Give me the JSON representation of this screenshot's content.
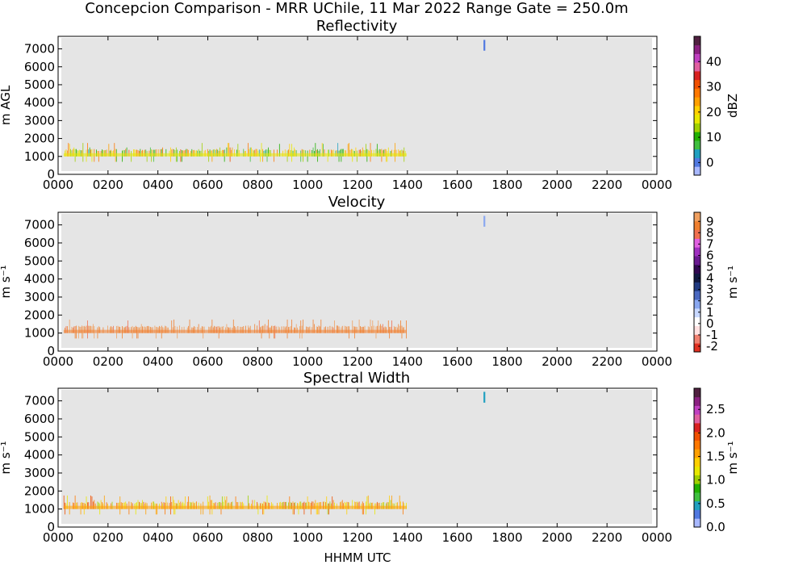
{
  "figure": {
    "title": "Concepcion Comparison - MRR UChile, 11 Mar 2022 Range Gate = 250.0m",
    "xlabel": "HHMM UTC"
  },
  "chart_data": [
    {
      "type": "heatmap",
      "title": "Reflectivity",
      "ylabel": "m AGL",
      "x_ticks": [
        "0000",
        "0200",
        "0400",
        "0600",
        "0800",
        "1000",
        "1200",
        "1400",
        "1600",
        "1800",
        "2000",
        "2200",
        "0000"
      ],
      "y_ticks": [
        0,
        1000,
        2000,
        3000,
        4000,
        5000,
        6000,
        7000
      ],
      "xlim_hours": [
        0,
        24
      ],
      "ylim": [
        0,
        7700
      ],
      "colorbar": {
        "label": "dBZ",
        "range": [
          -5,
          50
        ],
        "ticks": [
          {
            "v": 0,
            "t": "0"
          },
          {
            "v": 10,
            "t": "10"
          },
          {
            "v": 20,
            "t": "20"
          },
          {
            "v": 30,
            "t": "30"
          },
          {
            "v": 40,
            "t": "40"
          }
        ],
        "colors": [
          "#a8b8ff",
          "#5078e0",
          "#20a0c0",
          "#40c040",
          "#20b000",
          "#a0d000",
          "#e8e800",
          "#ffd000",
          "#ffa000",
          "#ff7800",
          "#f05000",
          "#d82020",
          "#e060a0",
          "#c040c0",
          "#8a2080",
          "#502040"
        ]
      },
      "background": "#e5e5e5",
      "data_end_hours": 13.97,
      "layer_base_m": 1000,
      "layer_top_m": 1300,
      "peaks_m": [
        1500,
        1700,
        1750
      ],
      "data_range": [
        5,
        30
      ],
      "sparse_echo": {
        "time_hours": 17.05,
        "height_m": [
          6900,
          7500
        ],
        "value": 0
      }
    },
    {
      "type": "heatmap",
      "title": "Velocity",
      "ylabel": "m s⁻¹",
      "x_ticks": [
        "0000",
        "0200",
        "0400",
        "0600",
        "0800",
        "1000",
        "1200",
        "1400",
        "1600",
        "1800",
        "2000",
        "2200",
        "0000"
      ],
      "y_ticks": [
        0,
        1000,
        2000,
        3000,
        4000,
        5000,
        6000,
        7000
      ],
      "xlim_hours": [
        0,
        24
      ],
      "ylim": [
        0,
        7700
      ],
      "colorbar": {
        "label": "m s⁻¹",
        "range": [
          -2.5,
          9.8
        ],
        "ticks": [
          {
            "v": -2,
            "t": "-2"
          },
          {
            "v": -1,
            "t": "-1"
          },
          {
            "v": 0,
            "t": "0"
          },
          {
            "v": 1,
            "t": "1"
          },
          {
            "v": 2,
            "t": "2"
          },
          {
            "v": 3,
            "t": "3"
          },
          {
            "v": 4,
            "t": "4"
          },
          {
            "v": 5,
            "t": "5"
          },
          {
            "v": 6,
            "t": "6"
          },
          {
            "v": 7,
            "t": "7"
          },
          {
            "v": 8,
            "t": "8"
          },
          {
            "v": 9,
            "t": "9"
          }
        ],
        "colors": [
          "#e03020",
          "#f08070",
          "#ffe0e0",
          "#ffffff",
          "#c8d8ff",
          "#8aa8f0",
          "#4a68c0",
          "#203a80",
          "#101840",
          "#300850",
          "#6a1a90",
          "#a030c0",
          "#e060e0",
          "#f07050",
          "#f08030",
          "#f0a060"
        ]
      },
      "background": "#e5e5e5",
      "data_end_hours": 13.97,
      "layer_base_m": 1000,
      "layer_top_m": 1300,
      "peaks_m": [
        1500,
        1700,
        1750
      ],
      "data_range": [
        8.2,
        9.6
      ],
      "sparse_echo": {
        "time_hours": 17.05,
        "height_m": [
          6900,
          7500
        ],
        "value": 2
      }
    },
    {
      "type": "heatmap",
      "title": "Spectral Width",
      "ylabel": "m s⁻¹",
      "x_ticks": [
        "0000",
        "0200",
        "0400",
        "0600",
        "0800",
        "1000",
        "1200",
        "1400",
        "1600",
        "1800",
        "2000",
        "2200",
        "0000"
      ],
      "y_ticks": [
        0,
        1000,
        2000,
        3000,
        4000,
        5000,
        6000,
        7000
      ],
      "xlim_hours": [
        0,
        24
      ],
      "ylim": [
        0,
        7700
      ],
      "colorbar": {
        "label": "m s⁻¹",
        "range": [
          0,
          2.95
        ],
        "ticks": [
          {
            "v": 0,
            "t": "0.0"
          },
          {
            "v": 0.5,
            "t": "0.5"
          },
          {
            "v": 1,
            "t": "1.0"
          },
          {
            "v": 1.5,
            "t": "1.5"
          },
          {
            "v": 2,
            "t": "2.0"
          },
          {
            "v": 2.5,
            "t": "2.5"
          }
        ],
        "colors": [
          "#a8b8ff",
          "#5078e0",
          "#20a0c0",
          "#40c040",
          "#20b000",
          "#a0d000",
          "#e8e800",
          "#ffd000",
          "#ffa000",
          "#ff7800",
          "#f05000",
          "#d82020",
          "#e060a0",
          "#c040c0",
          "#8a2080",
          "#502040"
        ]
      },
      "background": "#e5e5e5",
      "data_end_hours": 13.97,
      "layer_base_m": 1000,
      "layer_top_m": 1300,
      "peaks_m": [
        1500,
        1700,
        1750
      ],
      "data_range": [
        1.0,
        2.0
      ],
      "sparse_echo": {
        "time_hours": 17.05,
        "height_m": [
          6900,
          7500
        ],
        "value": 0.4
      }
    }
  ]
}
